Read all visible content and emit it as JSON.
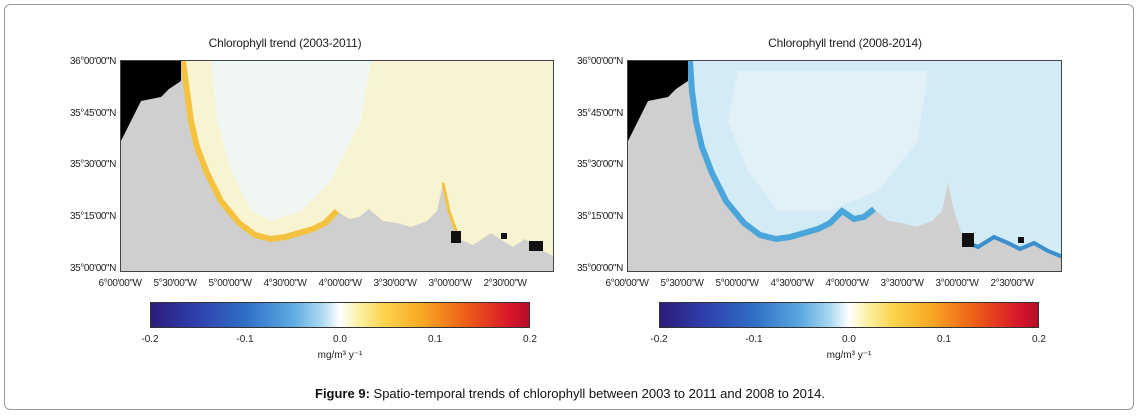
{
  "figure": {
    "caption_label": "Figure 9:",
    "caption_text": " Spatio-temporal trends of chlorophyll between 2003 to 2011 and 2008 to 2014."
  },
  "panels": [
    {
      "title": "Chlorophyll trend (2003-2011)",
      "lat_ticks": [
        "36°00'00\"N",
        "35°45'00\"N",
        "35°30'00\"N",
        "35°15'00\"N",
        "35°00'00\"N"
      ],
      "lon_ticks": [
        "6°00'00\"W",
        "5°30'00\"W",
        "5°00'00\"W",
        "4°30'00\"W",
        "4°00'00\"W",
        "3°30'00\"W",
        "3°00'00\"W",
        "2°30'00\"W"
      ],
      "colorbar": {
        "ticks": [
          "-0.2",
          "-0.1",
          "0.0",
          "0.1",
          "0.2"
        ],
        "unit": "mg/m³ y⁻¹"
      },
      "sea_color": "#f7f3cf",
      "coast_color": "#f5c242"
    },
    {
      "title": "Chlorophyll trend (2008-2014)",
      "lat_ticks": [
        "36°00'00\"N",
        "35°45'00\"N",
        "35°30'00\"N",
        "35°15'00\"N",
        "35°00'00\"N"
      ],
      "lon_ticks": [
        "6°00'00\"W",
        "5°30'00\"W",
        "5°00'00\"W",
        "4°30'00\"W",
        "4°00'00\"W",
        "3°30'00\"W",
        "3°00'00\"W",
        "2°30'00\"W"
      ],
      "colorbar": {
        "ticks": [
          "-0.2",
          "-0.1",
          "0.0",
          "0.1",
          "0.2"
        ],
        "unit": "mg/m³ y⁻¹"
      },
      "sea_color": "#cfe8f4",
      "coast_color": "#4fa9db"
    }
  ],
  "colors": {
    "land": "#c8c8c8",
    "spain": "#000000"
  }
}
